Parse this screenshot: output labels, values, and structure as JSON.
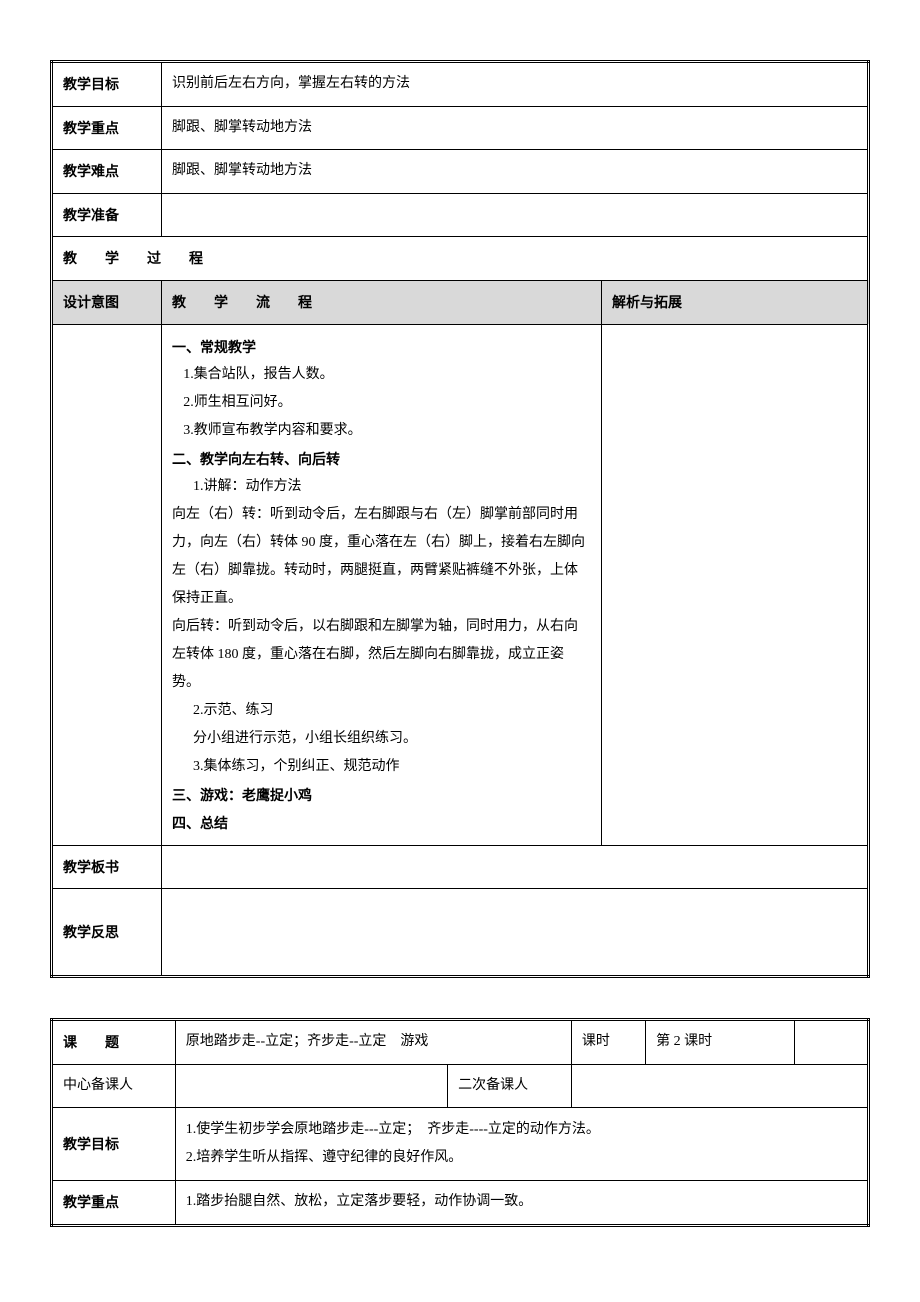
{
  "table1": {
    "rows": {
      "goal": {
        "label": "教学目标",
        "value": "识别前后左右方向，掌握左右转的方法"
      },
      "focus": {
        "label": "教学重点",
        "value": "脚跟、脚掌转动地方法"
      },
      "hard": {
        "label": "教学难点",
        "value": "脚跟、脚掌转动地方法"
      },
      "prep": {
        "label": "教学准备",
        "value": ""
      },
      "proc": {
        "label": "教　　学　　过　　程"
      },
      "design": {
        "label": "设计意图"
      },
      "flow": {
        "label": "教　　学　　流　　程"
      },
      "ext": {
        "label": "解析与拓展"
      },
      "board": {
        "label": "教学板书",
        "value": ""
      },
      "reflect": {
        "label": "教学反思",
        "value": ""
      }
    },
    "content": {
      "h1": "一、常规教学",
      "l1a": "1.集合站队，报告人数。",
      "l1b": "2.师生相互问好。",
      "l1c": "3.教师宣布教学内容和要求。",
      "h2": "二、教学向左右转、向后转",
      "l2a": "1.讲解：动作方法",
      "p1": "向左（右）转：听到动令后，左右脚跟与右（左）脚掌前部同时用力，向左（右）转体 90 度，重心落在左（右）脚上，接着右左脚向左（右）脚靠拢。转动时，两腿挺直，两臂紧贴裤缝不外张，上体保持正直。",
      "p2": "向后转：听到动令后，以右脚跟和左脚掌为轴，同时用力，从右向左转体 180 度，重心落在右脚，然后左脚向右脚靠拢，成立正姿势。",
      "l2b": "2.示范、练习",
      "l2c": "分小组进行示范，小组长组织练习。",
      "l2d": "3.集体练习，个别纠正、规范动作",
      "h3": "三、游戏：老鹰捉小鸡",
      "h4": "四、总结"
    }
  },
  "table2": {
    "r1": {
      "c1": "课　　题",
      "c2": "原地踏步走--立定；齐步走--立定　游戏",
      "c3": "课时",
      "c4": "第 2 课时"
    },
    "r2": {
      "c1": "中心备课人",
      "c2": "",
      "c3": "二次备课人",
      "c4": ""
    },
    "r3": {
      "c1": "教学目标",
      "l1": "1.使学生初步学会原地踏步走---立定；　齐步走----立定的动作方法。",
      "l2": "2.培养学生听从指挥、遵守纪律的良好作风。"
    },
    "r4": {
      "c1": "教学重点",
      "c2": "1.踏步抬腿自然、放松，立定落步要轻，动作协调一致。"
    }
  }
}
